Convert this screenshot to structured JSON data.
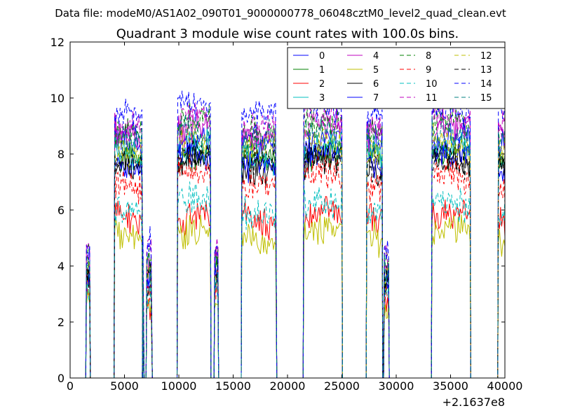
{
  "chart_data": {
    "type": "line",
    "suptitle": "Data file: modeM0/AS1A02_090T01_9000000778_06048cztM0_level2_quad_clean.evt",
    "title": "Quadrant 3 module wise count rates with 100.0s bins.",
    "xlabel": "",
    "ylabel": "",
    "x_offset_label": "+2.1637e8",
    "xlim": [
      0,
      40000
    ],
    "ylim": [
      0,
      12
    ],
    "xticks": [
      0,
      5000,
      10000,
      15000,
      20000,
      25000,
      30000,
      35000,
      40000
    ],
    "xtick_labels": [
      "0",
      "5000",
      "10000",
      "15000",
      "20000",
      "25000",
      "30000",
      "35000",
      "40000"
    ],
    "yticks": [
      0,
      2,
      4,
      6,
      8,
      10,
      12
    ],
    "ytick_labels": [
      "0",
      "2",
      "4",
      "6",
      "8",
      "10",
      "12"
    ],
    "grid": false,
    "legend_position": "top-right",
    "legend_columns": 4,
    "bin_seconds": 100,
    "active_intervals": [
      [
        1500,
        1800
      ],
      [
        4100,
        6650
      ],
      [
        6700,
        6750
      ],
      [
        7050,
        7500
      ],
      [
        9900,
        12900
      ],
      [
        13300,
        13600
      ],
      [
        15800,
        18950
      ],
      [
        21500,
        25000
      ],
      [
        27300,
        28700
      ],
      [
        28900,
        29300
      ],
      [
        33300,
        36800
      ],
      [
        39400,
        40000
      ]
    ],
    "series": [
      {
        "name": "0",
        "color": "#0000ff",
        "dash": "solid",
        "level": 8.4
      },
      {
        "name": "1",
        "color": "#008000",
        "dash": "solid",
        "level": 7.9
      },
      {
        "name": "2",
        "color": "#ff0000",
        "dash": "solid",
        "level": 5.7
      },
      {
        "name": "3",
        "color": "#00bfbf",
        "dash": "solid",
        "level": 8.1
      },
      {
        "name": "4",
        "color": "#bf00bf",
        "dash": "solid",
        "level": 8.8
      },
      {
        "name": "5",
        "color": "#bfbf00",
        "dash": "solid",
        "level": 5.1
      },
      {
        "name": "6",
        "color": "#000000",
        "dash": "solid",
        "level": 7.6
      },
      {
        "name": "7",
        "color": "#0000ff",
        "dash": "solid",
        "level": 7.8
      },
      {
        "name": "8",
        "color": "#008000",
        "dash": "dashed",
        "level": 9.0
      },
      {
        "name": "9",
        "color": "#ff0000",
        "dash": "dashed",
        "level": 7.1
      },
      {
        "name": "10",
        "color": "#00bfbf",
        "dash": "dashed",
        "level": 6.1
      },
      {
        "name": "11",
        "color": "#bf00bf",
        "dash": "dashed",
        "level": 9.2
      },
      {
        "name": "12",
        "color": "#bfbf00",
        "dash": "dashed",
        "level": 8.3
      },
      {
        "name": "13",
        "color": "#000000",
        "dash": "dashed",
        "level": 7.8
      },
      {
        "name": "14",
        "color": "#0000ff",
        "dash": "dashed",
        "level": 9.6
      },
      {
        "name": "15",
        "color": "#008080",
        "dash": "dashed",
        "level": 8.6
      }
    ]
  }
}
